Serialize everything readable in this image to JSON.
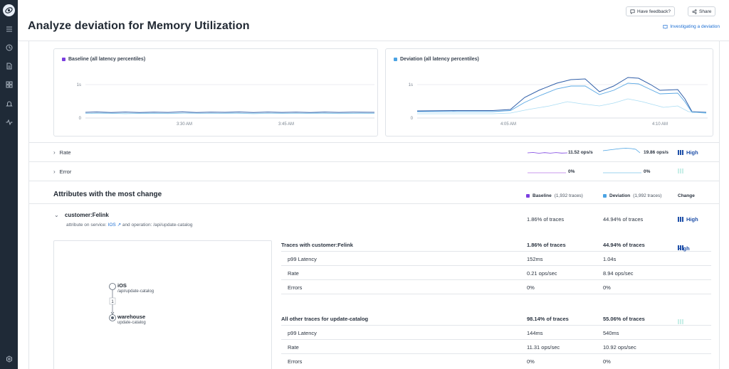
{
  "header": {
    "title": "Analyze deviation for Memory Utilization",
    "feedback_label": "Have feedback?",
    "share_label": "Share",
    "investigating_link": "Investigating a deviation"
  },
  "sidebar": {
    "icons": [
      "logo-icon",
      "menu-icon",
      "clock-icon",
      "document-icon",
      "dashboard-icon",
      "bell-icon",
      "activity-icon",
      "settings-icon"
    ]
  },
  "charts": {
    "baseline": {
      "legend": "Baseline (all latency percentiles)",
      "color": "#7b3fe0",
      "y_ticks": [
        "1s",
        "0"
      ],
      "x_ticks": [
        "3:30 AM",
        "3:45 AM"
      ]
    },
    "deviation": {
      "legend": "Deviation (all latency percentiles)",
      "color": "#4ba3e3",
      "y_ticks": [
        "1s",
        "0"
      ],
      "x_ticks": [
        "4:05 AM",
        "4:10 AM"
      ]
    }
  },
  "rows": {
    "rate": {
      "label": "Rate",
      "baseline": "11.52 ops/s",
      "deviation": "19.86 ops/s",
      "change": "High"
    },
    "error": {
      "label": "Error",
      "baseline": "0%",
      "deviation": "0%"
    }
  },
  "attributes": {
    "title": "Attributes with the most change",
    "baseline_head": "Baseline",
    "baseline_count": "(1,932 traces)",
    "deviation_head": "Deviation",
    "deviation_count": "(1,992 traces)",
    "change_head": "Change",
    "item": {
      "name": "customer:Felink",
      "sub_prefix": "attribute on service:",
      "service": "IOS",
      "sub_mid": "and operation:",
      "operation": "/api/update-catalog",
      "baseline": "1.86% of traces",
      "deviation": "44.94% of traces",
      "change": "High"
    }
  },
  "graph": {
    "node1_name": "iOS",
    "node1_op": "/api/update-catalog",
    "edge_count": "1",
    "node2_name": "warehouse",
    "node2_op": "update-catalog"
  },
  "table": {
    "group1": {
      "title": "Traces with customer:Felink",
      "baseline": "1.86% of traces",
      "deviation": "44.94% of traces",
      "change": "High",
      "rows": [
        {
          "label": "p99 Latency",
          "baseline": "152ms",
          "deviation": "1.04s"
        },
        {
          "label": "Rate",
          "baseline": "0.21 ops/sec",
          "deviation": "8.94 ops/sec"
        },
        {
          "label": "Errors",
          "baseline": "0%",
          "deviation": "0%"
        }
      ]
    },
    "group2": {
      "title": "All other traces for update-catalog",
      "baseline": "98.14% of traces",
      "deviation": "55.06% of traces",
      "rows": [
        {
          "label": "p99 Latency",
          "baseline": "144ms",
          "deviation": "540ms"
        },
        {
          "label": "Rate",
          "baseline": "11.31 ops/sec",
          "deviation": "10.92 ops/sec"
        },
        {
          "label": "Errors",
          "baseline": "0%",
          "deviation": "0%"
        }
      ]
    }
  }
}
